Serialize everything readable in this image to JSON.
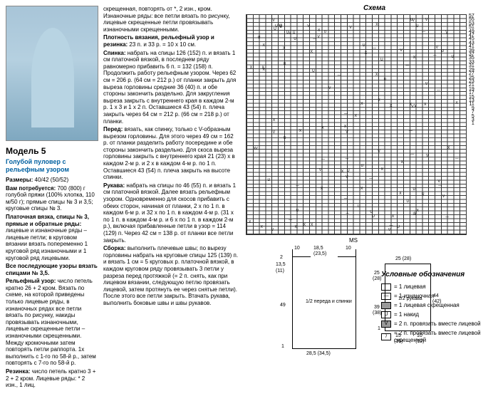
{
  "model": {
    "num": "Модель 5",
    "title": "Голубой пуловер с рельефным узором"
  },
  "col1": {
    "sizes_label": "Размеры:",
    "sizes": "40/42 (50/52)",
    "materials_label": "Вам потребуется:",
    "materials": "700 (800) г голубой пряжи (100% хлопка, 110 м/50 г); прямые спицы № 3 и 3,5; круговые спицы № 3.",
    "garter_label": "Платочная вязка, спицы № 3, прямые и обратные ряды:",
    "garter": "лицевые и изнаночные ряды – лицевые петли; в круговом вязании вязать попеременно 1 круговой ряд изнаночными и 1 круговой ряд лицевыми.",
    "relief_label": "Все последующие узоры вязать спицами № 3,5.",
    "relief2_label": "Рельефный узор:",
    "relief2": "число петель кратно 26 + 2 кром. Вязать по схеме, на которой приведены только лицевые ряды, в изнаночных рядах все петли вязать по рисунку, накиды провязывать изнаночными, лицевые скрещенные петли – изнаночными скрещенными. Между кромочными затем повторять петли раппорта. 1х выполнить с 1-го по 58-й р., затем повторять с 7-го по 58-й р.",
    "rib_label": "Резинка:",
    "rib": "число петель кратно 3 + 2 + 2 кром. Лицевые ряды: * 2 изн., 1 лиц."
  },
  "col2": {
    "p1": "скрещенная, повторять от *, 2 изн., кром. Изнаночные ряды: все петли вязать по рисунку, лицевые скрещенные петли провязывать изнаночными скрещенными.",
    "density_label": "Плотность вязания, рельефный узор и резинка:",
    "density": "23 п. и 33 р. = 10 x 10 см.",
    "back_label": "Спинка:",
    "back": "набрать на спицы 126 (152) п. и вязать 1 см платочной вязкой, в последнем ряду равномерно прибавить 6 п. = 132 (158) п. Продолжить работу рельефным узором. Через 62 см = 206 р. (64 см = 212 р.) от планки закрыть для выреза горловины средние 36 (40) п. и обе стороны закончить раздельно. Для закругления выреза закрыть с внутреннего края в каждом 2-м р. 1 x 3 и 1 x 2 п. Оставшиеся 43 (54) п. плеча закрыть через 64 см = 212 р. (66 см = 218 р.) от планки.",
    "front_label": "Перед:",
    "front": "вязать, как спинку, только с V-образным вырезом горловины. Для этого через 49 см = 162 р. от планки разделить работу посередине и обе стороны закончить раздельно. Для скоса выреза горловины закрыть с внутреннего края 21 (23) x в каждом 2-м р. и 2 x в каждом 4-м р. по 1 п. Оставшиеся 43 (54) п. плеча закрыть на высоте спинки.",
    "sleeve_label": "Рукава:",
    "sleeve": "набрать на спицы по 46 (55) п. и вязать 1 см платочной вязкой. Далее вязать рельефным узором. Одновременно для скосов прибавить с обеих сторон, начиная от планки, 2 x по 1 п. в каждом 6-м р. и 32 x по 1 п. в каждом 4-м р. (31 x по 1 п. в каждом 4-м р. и 6 x по 1 п. в каждом 2-м р.), включая прибавленные петли в узор = 114 (129) п. Через 42 см = 138 р. от планки все петли закрыть.",
    "assembly_label": "Сборка:",
    "assembly": "выполнить плечевые швы; по вырезу горловины набрать на круговые спицы 125 (139) п. и вязать 1 см = 5 круговых р. платочной вязкой, в каждом круговом ряду провязывать 3 петли у разреза перед протяжкой (= 2 п. снять, как при лицевом вязании, следующую петлю провязать лицевой, затем протянуть ее через снятые петли). После этого все петли закрыть. Втачать рукава, выполнить боковые швы и швы рукавов."
  },
  "chart": {
    "label": "Схема",
    "ms": "MS",
    "rows": [
      "57",
      "55",
      "53",
      "51",
      "49",
      "47",
      "45",
      "43",
      "41",
      "39",
      "37",
      "35",
      "33",
      "31",
      "29",
      "27",
      "25",
      "23",
      "21",
      "19",
      "17",
      "15",
      "13",
      "11",
      "9",
      "7",
      "5",
      "3",
      "1"
    ]
  },
  "schematic": {
    "d1": "10",
    "d2": "18,5",
    "d3": "10",
    "d4": "(23,5)",
    "d5": "2",
    "d6": "13,5",
    "d7": "(11)",
    "d8": "49",
    "d9": "1",
    "d10": "28,5 (34,5)",
    "d11": "1/2 переда и спинки",
    "d12": "25",
    "d13": "25 (28)",
    "d14": "(28)",
    "d15": "39",
    "d16": "(38)",
    "d17": "44",
    "d18": "(42)",
    "d19": "1/2 рукава",
    "d20": "1",
    "d21": "15",
    "d22": "10",
    "d23": "(16)",
    "d24": "(12)"
  },
  "legend": {
    "title": "Условные обозначения",
    "s1": "= 1 лицевая",
    "s2": "= 1 изнаночная",
    "s3": "= 1 лицевая скрещенная",
    "s4": "= 1 накид",
    "s5": "= 2 п. провязать вместе лицевой",
    "s6": "= 2 п. провязать вместе лицевой скрещенной"
  }
}
